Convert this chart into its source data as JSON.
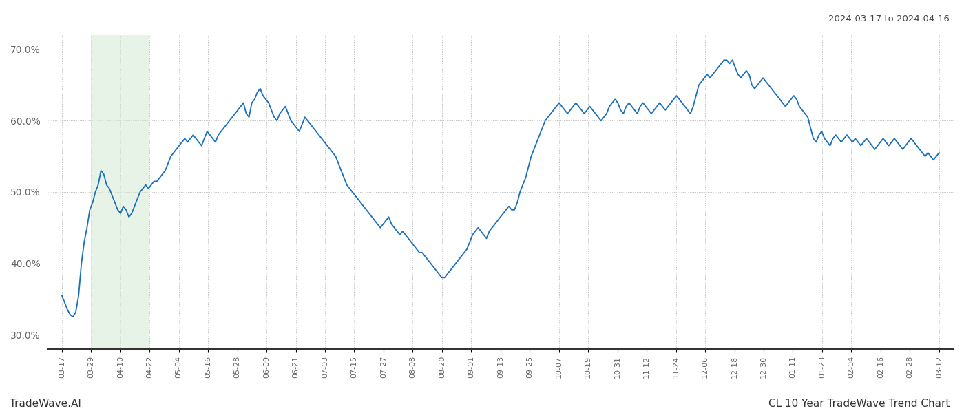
{
  "title_top_right": "2024-03-17 to 2024-04-16",
  "title_bottom_left": "TradeWave.AI",
  "title_bottom_right": "CL 10 Year TradeWave Trend Chart",
  "line_color": "#1a6fba",
  "line_width": 1.3,
  "shade_color": "#d6ead6",
  "shade_alpha": 0.55,
  "ylim": [
    28.0,
    72.0
  ],
  "yticks": [
    30.0,
    40.0,
    50.0,
    60.0,
    70.0
  ],
  "background_color": "#ffffff",
  "grid_color": "#bbbbbb",
  "x_labels": [
    "03-17",
    "03-29",
    "04-10",
    "04-22",
    "05-04",
    "05-16",
    "05-28",
    "06-09",
    "06-21",
    "07-03",
    "07-15",
    "07-27",
    "08-08",
    "08-20",
    "09-01",
    "09-13",
    "09-25",
    "10-07",
    "10-19",
    "10-31",
    "11-12",
    "11-24",
    "12-06",
    "12-18",
    "12-30",
    "01-11",
    "01-23",
    "02-04",
    "02-16",
    "02-28",
    "03-12"
  ],
  "shade_label_start": "03-29",
  "shade_label_end": "04-22",
  "values": [
    35.5,
    34.5,
    33.5,
    32.8,
    32.5,
    33.2,
    35.5,
    40.0,
    43.0,
    45.0,
    47.5,
    48.5,
    50.0,
    51.0,
    53.0,
    52.5,
    51.0,
    50.5,
    49.5,
    48.5,
    47.5,
    47.0,
    48.0,
    47.5,
    46.5,
    47.0,
    48.0,
    49.0,
    50.0,
    50.5,
    51.0,
    50.5,
    51.0,
    51.5,
    51.5,
    52.0,
    52.5,
    53.0,
    54.0,
    55.0,
    55.5,
    56.0,
    56.5,
    57.0,
    57.5,
    57.0,
    57.5,
    58.0,
    57.5,
    57.0,
    56.5,
    57.5,
    58.5,
    58.0,
    57.5,
    57.0,
    58.0,
    58.5,
    59.0,
    59.5,
    60.0,
    60.5,
    61.0,
    61.5,
    62.0,
    62.5,
    61.0,
    60.5,
    62.5,
    63.0,
    64.0,
    64.5,
    63.5,
    63.0,
    62.5,
    61.5,
    60.5,
    60.0,
    61.0,
    61.5,
    62.0,
    61.0,
    60.0,
    59.5,
    59.0,
    58.5,
    59.5,
    60.5,
    60.0,
    59.5,
    59.0,
    58.5,
    58.0,
    57.5,
    57.0,
    56.5,
    56.0,
    55.5,
    55.0,
    54.0,
    53.0,
    52.0,
    51.0,
    50.5,
    50.0,
    49.5,
    49.0,
    48.5,
    48.0,
    47.5,
    47.0,
    46.5,
    46.0,
    45.5,
    45.0,
    45.5,
    46.0,
    46.5,
    45.5,
    45.0,
    44.5,
    44.0,
    44.5,
    44.0,
    43.5,
    43.0,
    42.5,
    42.0,
    41.5,
    41.5,
    41.0,
    40.5,
    40.0,
    39.5,
    39.0,
    38.5,
    38.0,
    38.0,
    38.5,
    39.0,
    39.5,
    40.0,
    40.5,
    41.0,
    41.5,
    42.0,
    43.0,
    44.0,
    44.5,
    45.0,
    44.5,
    44.0,
    43.5,
    44.5,
    45.0,
    45.5,
    46.0,
    46.5,
    47.0,
    47.5,
    48.0,
    47.5,
    47.5,
    48.5,
    50.0,
    51.0,
    52.0,
    53.5,
    55.0,
    56.0,
    57.0,
    58.0,
    59.0,
    60.0,
    60.5,
    61.0,
    61.5,
    62.0,
    62.5,
    62.0,
    61.5,
    61.0,
    61.5,
    62.0,
    62.5,
    62.0,
    61.5,
    61.0,
    61.5,
    62.0,
    61.5,
    61.0,
    60.5,
    60.0,
    60.5,
    61.0,
    62.0,
    62.5,
    63.0,
    62.5,
    61.5,
    61.0,
    62.0,
    62.5,
    62.0,
    61.5,
    61.0,
    62.0,
    62.5,
    62.0,
    61.5,
    61.0,
    61.5,
    62.0,
    62.5,
    62.0,
    61.5,
    62.0,
    62.5,
    63.0,
    63.5,
    63.0,
    62.5,
    62.0,
    61.5,
    61.0,
    62.0,
    63.5,
    65.0,
    65.5,
    66.0,
    66.5,
    66.0,
    66.5,
    67.0,
    67.5,
    68.0,
    68.5,
    68.5,
    68.0,
    68.5,
    67.5,
    66.5,
    66.0,
    66.5,
    67.0,
    66.5,
    65.0,
    64.5,
    65.0,
    65.5,
    66.0,
    65.5,
    65.0,
    64.5,
    64.0,
    63.5,
    63.0,
    62.5,
    62.0,
    62.5,
    63.0,
    63.5,
    63.0,
    62.0,
    61.5,
    61.0,
    60.5,
    59.0,
    57.5,
    57.0,
    58.0,
    58.5,
    57.5,
    57.0,
    56.5,
    57.5,
    58.0,
    57.5,
    57.0,
    57.5,
    58.0,
    57.5,
    57.0,
    57.5,
    57.0,
    56.5,
    57.0,
    57.5,
    57.0,
    56.5,
    56.0,
    56.5,
    57.0,
    57.5,
    57.0,
    56.5,
    57.0,
    57.5,
    57.0,
    56.5,
    56.0,
    56.5,
    57.0,
    57.5,
    57.0,
    56.5,
    56.0,
    55.5,
    55.0,
    55.5,
    55.0,
    54.5,
    55.0,
    55.5
  ]
}
